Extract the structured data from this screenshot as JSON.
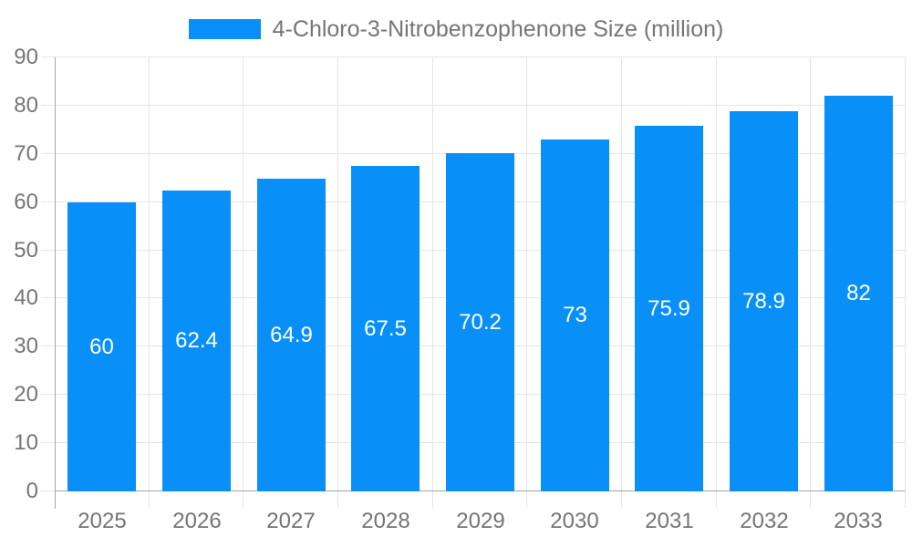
{
  "legend": {
    "label": "4-Chloro-3-Nitrobenzophenone Size (million)"
  },
  "chart_data": {
    "type": "bar",
    "title": "4-Chloro-3-Nitrobenzophenone Size (million)",
    "categories": [
      "2025",
      "2026",
      "2027",
      "2028",
      "2029",
      "2030",
      "2031",
      "2032",
      "2033"
    ],
    "values": [
      60,
      62.4,
      64.9,
      67.5,
      70.2,
      73,
      75.9,
      78.9,
      82
    ],
    "data_labels": [
      "60",
      "62.4",
      "64.9",
      "67.5",
      "70.2",
      "73",
      "75.9",
      "78.9",
      "82"
    ],
    "xlabel": "",
    "ylabel": "",
    "ylim": [
      0,
      90
    ],
    "ytick_step": 10,
    "ytick_labels": [
      "0",
      "10",
      "20",
      "30",
      "40",
      "50",
      "60",
      "70",
      "80",
      "90"
    ],
    "grid": true,
    "legend_position": "top-center",
    "data_label_position": "inside-center"
  },
  "colors": {
    "bar": "#0890f8",
    "grid": "#e5e5e5",
    "axis": "#a6a6a6",
    "text": "#757575",
    "data_label": "#ffffff",
    "background": "#ffffff"
  }
}
